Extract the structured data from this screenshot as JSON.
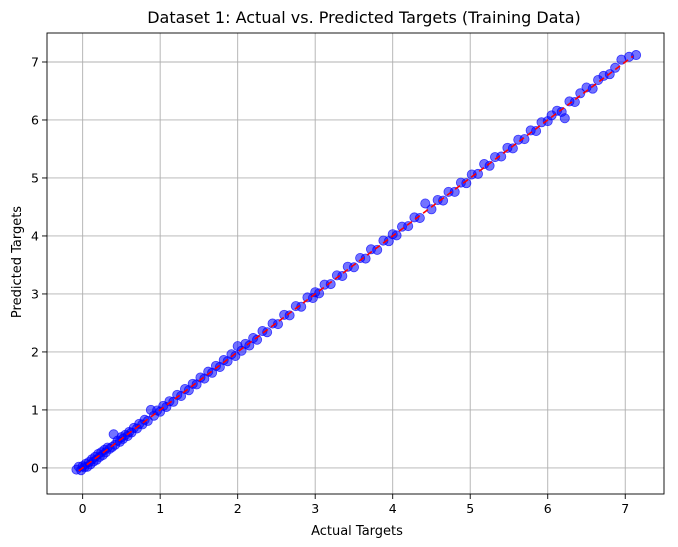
{
  "chart_data": {
    "type": "scatter",
    "title": "Dataset 1: Actual vs. Predicted Targets (Training Data)",
    "xlabel": "Actual Targets",
    "ylabel": "Predicted Targets",
    "xlim": [
      -0.46,
      7.5
    ],
    "ylim": [
      -0.45,
      7.5
    ],
    "xticks": [
      0,
      1,
      2,
      3,
      4,
      5,
      6,
      7
    ],
    "yticks": [
      0,
      1,
      2,
      3,
      4,
      5,
      6,
      7
    ],
    "grid": true,
    "point_color": "#0000ff",
    "line_color": "#ff0000",
    "reference_line": {
      "style": "dashed",
      "x": [
        -0.05,
        7.1
      ],
      "y": [
        -0.05,
        7.1
      ]
    },
    "series": [
      {
        "values": [
          [
            -0.08,
            -0.03
          ],
          [
            -0.05,
            0.02
          ],
          [
            -0.02,
            -0.04
          ],
          [
            0.0,
            0.03
          ],
          [
            0.02,
            0.01
          ],
          [
            0.04,
            0.07
          ],
          [
            0.06,
            0.02
          ],
          [
            0.08,
            0.1
          ],
          [
            0.1,
            0.06
          ],
          [
            0.12,
            0.15
          ],
          [
            0.14,
            0.11
          ],
          [
            0.16,
            0.19
          ],
          [
            0.18,
            0.14
          ],
          [
            0.2,
            0.24
          ],
          [
            0.22,
            0.19
          ],
          [
            0.24,
            0.27
          ],
          [
            0.26,
            0.22
          ],
          [
            0.28,
            0.31
          ],
          [
            0.3,
            0.27
          ],
          [
            0.32,
            0.35
          ],
          [
            0.35,
            0.33
          ],
          [
            0.38,
            0.36
          ],
          [
            0.4,
            0.58
          ],
          [
            0.42,
            0.4
          ],
          [
            0.45,
            0.47
          ],
          [
            0.48,
            0.45
          ],
          [
            0.5,
            0.53
          ],
          [
            0.52,
            0.5
          ],
          [
            0.55,
            0.57
          ],
          [
            0.58,
            0.55
          ],
          [
            0.6,
            0.62
          ],
          [
            0.63,
            0.61
          ],
          [
            0.66,
            0.69
          ],
          [
            0.7,
            0.68
          ],
          [
            0.73,
            0.76
          ],
          [
            0.77,
            0.75
          ],
          [
            0.8,
            0.83
          ],
          [
            0.84,
            0.81
          ],
          [
            0.88,
            1.0
          ],
          [
            0.92,
            0.9
          ],
          [
            0.96,
            0.99
          ],
          [
            1.0,
            0.97
          ],
          [
            1.04,
            1.07
          ],
          [
            1.08,
            1.05
          ],
          [
            1.12,
            1.15
          ],
          [
            1.17,
            1.14
          ],
          [
            1.22,
            1.26
          ],
          [
            1.27,
            1.24
          ],
          [
            1.32,
            1.36
          ],
          [
            1.37,
            1.34
          ],
          [
            1.42,
            1.45
          ],
          [
            1.47,
            1.44
          ],
          [
            1.52,
            1.56
          ],
          [
            1.57,
            1.54
          ],
          [
            1.62,
            1.66
          ],
          [
            1.67,
            1.64
          ],
          [
            1.72,
            1.76
          ],
          [
            1.77,
            1.74
          ],
          [
            1.82,
            1.86
          ],
          [
            1.87,
            1.84
          ],
          [
            1.92,
            1.96
          ],
          [
            1.97,
            1.93
          ],
          [
            2.0,
            2.1
          ],
          [
            2.05,
            2.02
          ],
          [
            2.1,
            2.14
          ],
          [
            2.15,
            2.11
          ],
          [
            2.2,
            2.24
          ],
          [
            2.25,
            2.21
          ],
          [
            2.32,
            2.36
          ],
          [
            2.38,
            2.34
          ],
          [
            2.45,
            2.49
          ],
          [
            2.52,
            2.48
          ],
          [
            2.6,
            2.64
          ],
          [
            2.67,
            2.63
          ],
          [
            2.75,
            2.79
          ],
          [
            2.82,
            2.78
          ],
          [
            2.9,
            2.94
          ],
          [
            2.97,
            2.93
          ],
          [
            3.0,
            3.03
          ],
          [
            3.05,
            3.01
          ],
          [
            3.12,
            3.16
          ],
          [
            3.2,
            3.17
          ],
          [
            3.28,
            3.32
          ],
          [
            3.35,
            3.31
          ],
          [
            3.42,
            3.47
          ],
          [
            3.5,
            3.46
          ],
          [
            3.58,
            3.62
          ],
          [
            3.65,
            3.61
          ],
          [
            3.72,
            3.77
          ],
          [
            3.8,
            3.76
          ],
          [
            3.88,
            3.92
          ],
          [
            3.95,
            3.91
          ],
          [
            4.0,
            4.03
          ],
          [
            4.05,
            4.01
          ],
          [
            4.12,
            4.16
          ],
          [
            4.2,
            4.17
          ],
          [
            4.28,
            4.32
          ],
          [
            4.35,
            4.31
          ],
          [
            4.42,
            4.56
          ],
          [
            4.5,
            4.46
          ],
          [
            4.58,
            4.62
          ],
          [
            4.65,
            4.61
          ],
          [
            4.72,
            4.76
          ],
          [
            4.8,
            4.76
          ],
          [
            4.88,
            4.92
          ],
          [
            4.95,
            4.91
          ],
          [
            5.02,
            5.06
          ],
          [
            5.1,
            5.07
          ],
          [
            5.18,
            5.24
          ],
          [
            5.25,
            5.21
          ],
          [
            5.32,
            5.36
          ],
          [
            5.4,
            5.37
          ],
          [
            5.48,
            5.52
          ],
          [
            5.55,
            5.51
          ],
          [
            5.62,
            5.66
          ],
          [
            5.7,
            5.67
          ],
          [
            5.78,
            5.82
          ],
          [
            5.85,
            5.81
          ],
          [
            5.92,
            5.96
          ],
          [
            6.0,
            5.98
          ],
          [
            6.05,
            6.08
          ],
          [
            6.12,
            6.16
          ],
          [
            6.18,
            6.14
          ],
          [
            6.22,
            6.03
          ],
          [
            6.28,
            6.32
          ],
          [
            6.35,
            6.31
          ],
          [
            6.42,
            6.46
          ],
          [
            6.5,
            6.56
          ],
          [
            6.58,
            6.54
          ],
          [
            6.65,
            6.69
          ],
          [
            6.72,
            6.76
          ],
          [
            6.8,
            6.79
          ],
          [
            6.87,
            6.9
          ],
          [
            6.95,
            7.04
          ],
          [
            7.05,
            7.09
          ],
          [
            7.14,
            7.12
          ]
        ]
      }
    ]
  }
}
